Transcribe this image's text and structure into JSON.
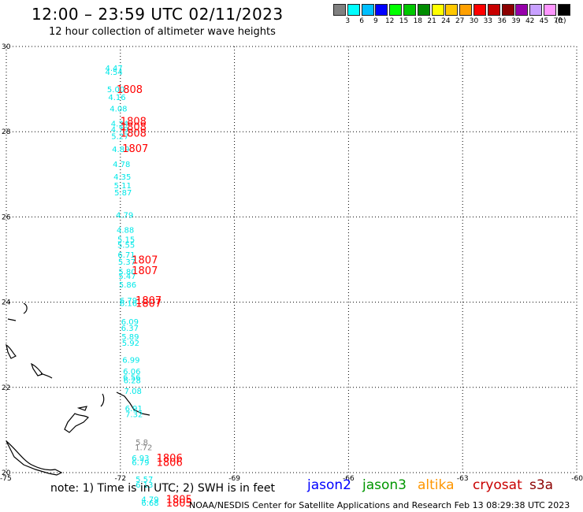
{
  "title": "12:00 – 23:59 UTC 02/11/2023",
  "subtitle": "12 hour collection of altimeter wave heights",
  "colorbar": {
    "colors": [
      "#808080",
      "#00ffff",
      "#00bfff",
      "#0000ff",
      "#00ff00",
      "#00c800",
      "#008c00",
      "#ffff00",
      "#ffc800",
      "#ffa000",
      "#ff0000",
      "#c80000",
      "#8c0000",
      "#9600aa",
      "#c8a0ff",
      "#ff96ff",
      "#000000"
    ],
    "labels": [
      "3",
      "6",
      "9",
      "12",
      "15",
      "18",
      "21",
      "24",
      "27",
      "30",
      "33",
      "36",
      "39",
      "42",
      "45",
      "70"
    ],
    "unit": "(ft)"
  },
  "map": {
    "lat_ticks": [
      "30",
      "28",
      "26",
      "24",
      "22",
      "20"
    ],
    "lon_ticks": [
      "-75",
      "-72",
      "-69",
      "-66",
      "-63",
      "-60"
    ],
    "lat_range": [
      20,
      30
    ],
    "lon_range": [
      -75,
      -60
    ],
    "wave_heights_ft": [
      {
        "lat": 29.5,
        "lon": -72.4,
        "v": "4.47",
        "c": "#00e8e8"
      },
      {
        "lat": 29.41,
        "lon": -72.4,
        "v": "4.54",
        "c": "#00e8e8"
      },
      {
        "lat": 29.0,
        "lon": -72.35,
        "v": "5.00",
        "c": "#00e8e8"
      },
      {
        "lat": 28.82,
        "lon": -72.32,
        "v": "4.16",
        "c": "#00e8e8"
      },
      {
        "lat": 28.55,
        "lon": -72.28,
        "v": "4.08",
        "c": "#00e8e8"
      },
      {
        "lat": 28.2,
        "lon": -72.25,
        "v": "4.34",
        "c": "#00e8e8"
      },
      {
        "lat": 28.06,
        "lon": -72.25,
        "v": "4.79",
        "c": "#00e8e8"
      },
      {
        "lat": 27.9,
        "lon": -72.24,
        "v": "5.27",
        "c": "#00e8e8"
      },
      {
        "lat": 27.6,
        "lon": -72.22,
        "v": "4.89",
        "c": "#00e8e8"
      },
      {
        "lat": 27.25,
        "lon": -72.2,
        "v": "4.78",
        "c": "#00e8e8"
      },
      {
        "lat": 26.95,
        "lon": -72.18,
        "v": "4.35",
        "c": "#00e8e8"
      },
      {
        "lat": 26.75,
        "lon": -72.17,
        "v": "5.11",
        "c": "#00e8e8"
      },
      {
        "lat": 26.58,
        "lon": -72.16,
        "v": "5.87",
        "c": "#00e8e8"
      },
      {
        "lat": 26.05,
        "lon": -72.12,
        "v": "4.79",
        "c": "#00e8e8"
      },
      {
        "lat": 25.7,
        "lon": -72.1,
        "v": "4.88",
        "c": "#00e8e8"
      },
      {
        "lat": 25.48,
        "lon": -72.08,
        "v": "5.15",
        "c": "#00e8e8"
      },
      {
        "lat": 25.35,
        "lon": -72.08,
        "v": "5.55",
        "c": "#00e8e8"
      },
      {
        "lat": 25.12,
        "lon": -72.07,
        "v": "6.71",
        "c": "#00e8e8"
      },
      {
        "lat": 24.95,
        "lon": -72.06,
        "v": "5.37",
        "c": "#00e8e8"
      },
      {
        "lat": 24.72,
        "lon": -72.05,
        "v": "5.80",
        "c": "#00e8e8"
      },
      {
        "lat": 24.62,
        "lon": -72.05,
        "v": "5.47",
        "c": "#00e8e8"
      },
      {
        "lat": 24.42,
        "lon": -72.04,
        "v": "5.86",
        "c": "#00e8e8"
      },
      {
        "lat": 24.05,
        "lon": -72.02,
        "v": "6.79",
        "c": "#00e8e8"
      },
      {
        "lat": 23.98,
        "lon": -72.02,
        "v": "6.16",
        "c": "#00e8e8"
      },
      {
        "lat": 23.55,
        "lon": -71.98,
        "v": "6.09",
        "c": "#00e8e8"
      },
      {
        "lat": 23.4,
        "lon": -71.98,
        "v": "6.37",
        "c": "#00e8e8"
      },
      {
        "lat": 23.2,
        "lon": -71.97,
        "v": "5.89",
        "c": "#00e8e8"
      },
      {
        "lat": 23.05,
        "lon": -71.96,
        "v": "5.92",
        "c": "#00e8e8"
      },
      {
        "lat": 22.65,
        "lon": -71.95,
        "v": "6.99",
        "c": "#00e8e8"
      },
      {
        "lat": 22.38,
        "lon": -71.93,
        "v": "6.06",
        "c": "#00e8e8"
      },
      {
        "lat": 22.25,
        "lon": -71.93,
        "v": "6.56",
        "c": "#00e8e8"
      },
      {
        "lat": 22.17,
        "lon": -71.92,
        "v": "6.28",
        "c": "#00e8e8"
      },
      {
        "lat": 21.92,
        "lon": -71.9,
        "v": "7.08",
        "c": "#00e8e8"
      },
      {
        "lat": 21.52,
        "lon": -71.88,
        "v": "6.91",
        "c": "#00e8e8"
      },
      {
        "lat": 21.38,
        "lon": -71.87,
        "v": "7.32",
        "c": "#00e8e8"
      },
      {
        "lat": 20.72,
        "lon": -71.6,
        "v": "5.8",
        "c": "#808080"
      },
      {
        "lat": 20.6,
        "lon": -71.62,
        "v": "1.72",
        "c": "#808080"
      },
      {
        "lat": 20.35,
        "lon": -71.7,
        "v": "6.93",
        "c": "#00e8e8"
      },
      {
        "lat": 20.25,
        "lon": -71.7,
        "v": "6.79",
        "c": "#00e8e8"
      },
      {
        "lat": 19.85,
        "lon": -71.6,
        "v": "5.57",
        "c": "#00e8e8"
      },
      {
        "lat": 19.72,
        "lon": -71.6,
        "v": "6.13",
        "c": "#00e8e8"
      },
      {
        "lat": 19.38,
        "lon": -71.45,
        "v": "4.79",
        "c": "#00e8e8"
      },
      {
        "lat": 19.3,
        "lon": -71.45,
        "v": "6.68",
        "c": "#00e8e8"
      }
    ],
    "times": [
      {
        "lat": 29.0,
        "lon": -72.1,
        "v": "1808"
      },
      {
        "lat": 28.25,
        "lon": -72.0,
        "v": "1808"
      },
      {
        "lat": 28.12,
        "lon": -72.0,
        "v": "1808"
      },
      {
        "lat": 27.98,
        "lon": -72.0,
        "v": "1808"
      },
      {
        "lat": 27.62,
        "lon": -71.95,
        "v": "1807"
      },
      {
        "lat": 25.0,
        "lon": -71.7,
        "v": "1807"
      },
      {
        "lat": 24.75,
        "lon": -71.7,
        "v": "1807"
      },
      {
        "lat": 24.05,
        "lon": -71.6,
        "v": "1807"
      },
      {
        "lat": 23.98,
        "lon": -71.6,
        "v": "1807"
      },
      {
        "lat": 20.35,
        "lon": -71.05,
        "v": "1806"
      },
      {
        "lat": 20.25,
        "lon": -71.05,
        "v": "1806"
      },
      {
        "lat": 19.38,
        "lon": -70.8,
        "v": "1805"
      },
      {
        "lat": 19.3,
        "lon": -70.8,
        "v": "1805"
      }
    ]
  },
  "note": "note:  1) Time is in UTC;  2) SWH is in feet",
  "satellites": [
    {
      "name": "jason2",
      "color": "#0000ff"
    },
    {
      "name": "jason3",
      "color": "#009600"
    },
    {
      "name": "altika",
      "color": "#ff9600"
    },
    {
      "name": "cryosat",
      "color": "#c80000"
    },
    {
      "name": "s3a",
      "color": "#8c0000"
    }
  ],
  "footer": "NOAA/NESDIS Center for Satellite Applications and Research    Feb 13 08:29:38 UTC 2023"
}
